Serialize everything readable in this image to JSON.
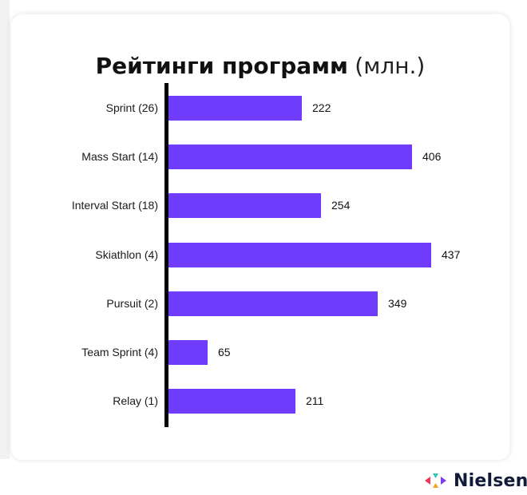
{
  "chart_data": {
    "type": "bar",
    "orientation": "horizontal",
    "title": "Рейтинги программ",
    "title_unit": "(млн.)",
    "categories": [
      "Sprint (26)",
      "Mass Start (14)",
      "Interval Start (18)",
      "Skiathlon (4)",
      "Pursuit (2)",
      "Team Sprint (4)",
      "Relay (1)"
    ],
    "values": [
      222,
      406,
      254,
      437,
      349,
      65,
      211
    ],
    "xlabel": "",
    "ylabel": "",
    "xlim": [
      0,
      437
    ],
    "grid": false,
    "legend": null,
    "data_labels": true,
    "bar_color": "#6f3bfc"
  },
  "header": {
    "title_bold": "Рейтинги программ",
    "title_unit": "(млн.)"
  },
  "rows": [
    {
      "label": "Sprint (26)",
      "value": "222"
    },
    {
      "label": "Mass Start (14)",
      "value": "406"
    },
    {
      "label": "Interval Start (18)",
      "value": "254"
    },
    {
      "label": "Skiathlon (4)",
      "value": "437"
    },
    {
      "label": "Pursuit (2)",
      "value": "349"
    },
    {
      "label": "Team Sprint (4)",
      "value": "65"
    },
    {
      "label": "Relay (1)",
      "value": "211"
    }
  ],
  "footer": {
    "brand": "Nielsen",
    "logo_icon": "nielsen-arrows-icon"
  },
  "colors": {
    "bar": "#6f3bfc",
    "axis": "#000000",
    "brand_text": "#101b3a",
    "logo_red": "#f0365a",
    "logo_teal": "#2ec4b6",
    "logo_purple": "#7b3cf0",
    "logo_orange": "#f7a21b"
  }
}
